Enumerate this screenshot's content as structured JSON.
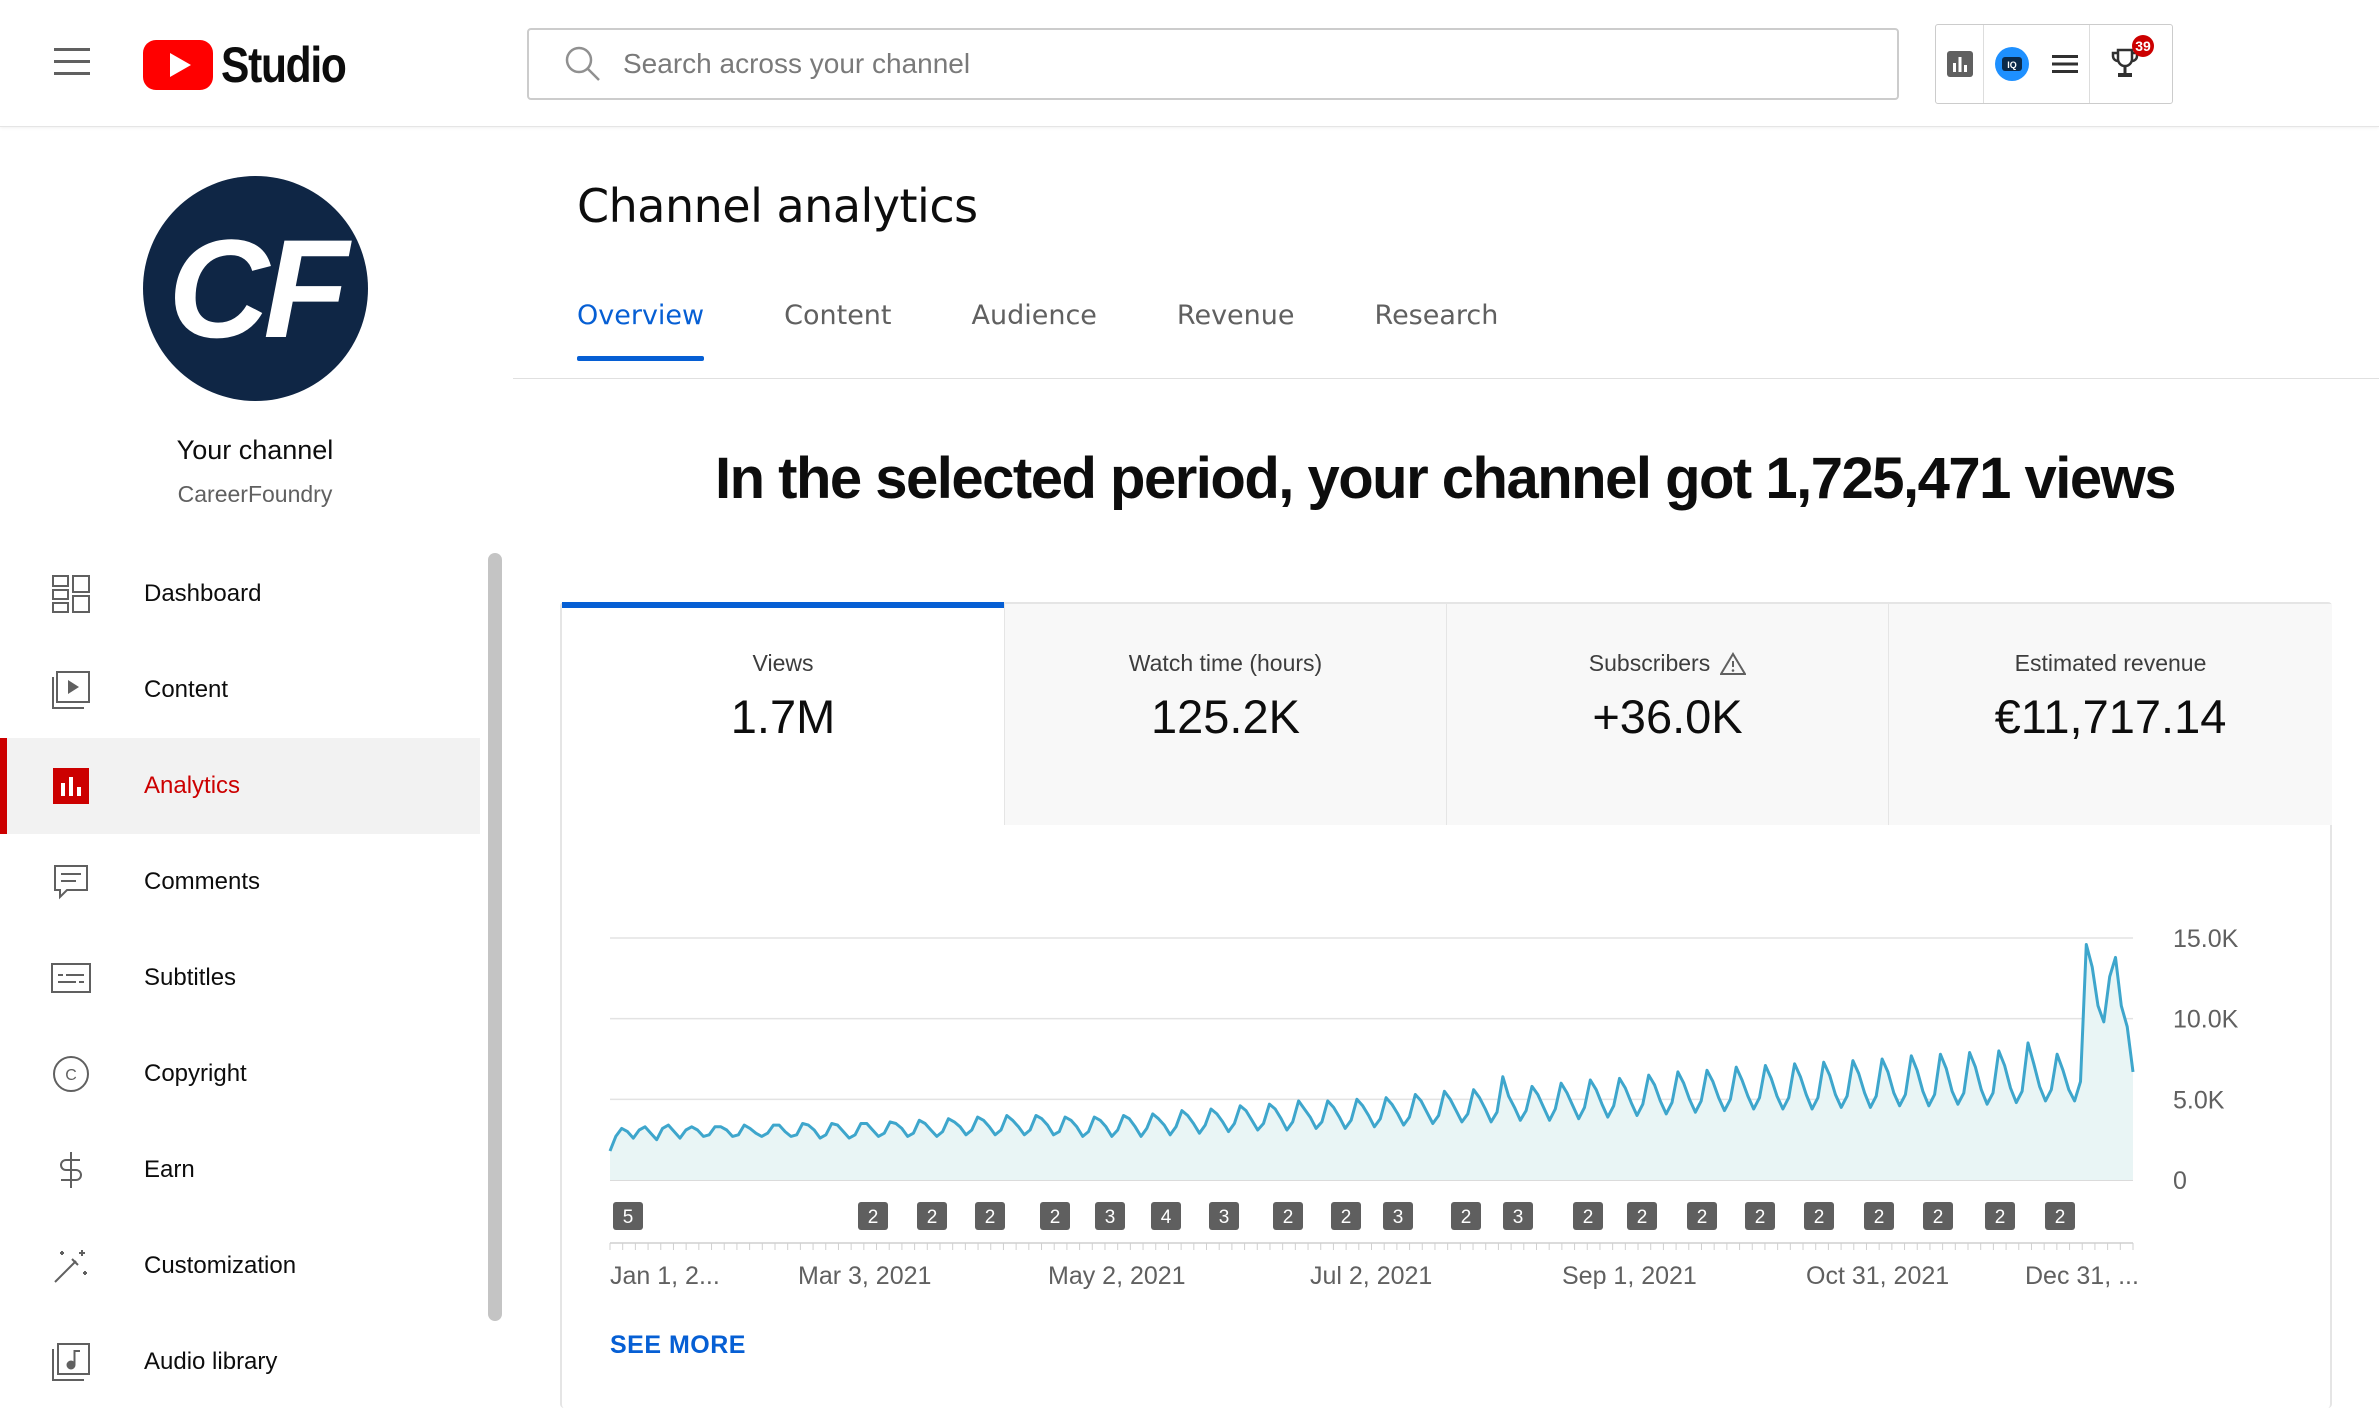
{
  "header": {
    "logo_text": "Studio",
    "search_placeholder": "Search across your channel",
    "notification_badge": "39"
  },
  "sidebar": {
    "avatar_initials": "CF",
    "channel_title": "Your channel",
    "channel_name": "CareerFoundry",
    "items": [
      {
        "label": "Dashboard",
        "icon": "dashboard-icon"
      },
      {
        "label": "Content",
        "icon": "content-icon"
      },
      {
        "label": "Analytics",
        "icon": "analytics-icon",
        "active": true
      },
      {
        "label": "Comments",
        "icon": "comments-icon"
      },
      {
        "label": "Subtitles",
        "icon": "subtitles-icon"
      },
      {
        "label": "Copyright",
        "icon": "copyright-icon"
      },
      {
        "label": "Earn",
        "icon": "earn-icon"
      },
      {
        "label": "Customization",
        "icon": "customization-icon"
      },
      {
        "label": "Audio library",
        "icon": "audio-library-icon"
      }
    ]
  },
  "main": {
    "page_title": "Channel analytics",
    "tabs": [
      "Overview",
      "Content",
      "Audience",
      "Revenue",
      "Research"
    ],
    "active_tab": "Overview",
    "headline": "In the selected period, your channel got 1,725,471 views",
    "metrics": [
      {
        "label": "Views",
        "value": "1.7M",
        "active": true
      },
      {
        "label": "Watch time (hours)",
        "value": "125.2K"
      },
      {
        "label": "Subscribers",
        "value": "+36.0K",
        "warning": true
      },
      {
        "label": "Estimated revenue",
        "value": "€11,717.14"
      }
    ],
    "see_more": "SEE MORE"
  },
  "colors": {
    "accent_blue": "#065fd4",
    "brand_red": "#cc0000",
    "line_color": "#3ea6cc",
    "area_fill": "#e9f5f5"
  },
  "chart_data": {
    "type": "area",
    "x_start": "Jan 1, 2021",
    "x_end": "Jan 15, 2022",
    "ylim": [
      0,
      15000
    ],
    "y_ticks": [
      "15.0K",
      "10.0K",
      "5.0K",
      "0"
    ],
    "x_tick_labels": [
      "Jan 1, 2...",
      "Mar 3, 2021",
      "May 2, 2021",
      "Jul 2, 2021",
      "Sep 1, 2021",
      "Oct 31, 2021",
      "Dec 31, ..."
    ],
    "annotation_markers": [
      "5",
      "2",
      "2",
      "2",
      "2",
      "3",
      "4",
      "3",
      "2",
      "2",
      "3",
      "2",
      "3",
      "2",
      "2",
      "2",
      "2",
      "2",
      "2",
      "2",
      "2",
      "2"
    ],
    "series": [
      {
        "values": [
          1800,
          2700,
          3200,
          3000,
          2600,
          3100,
          3300,
          2900,
          2500,
          3200,
          3400,
          3000,
          2600,
          3100,
          3300,
          3100,
          2700,
          2800,
          3300,
          3300,
          3100,
          2700,
          2800,
          3400,
          3200,
          2900,
          2700,
          2900,
          3400,
          3400,
          3000,
          2700,
          2800,
          3500,
          3400,
          3100,
          2600,
          2800,
          3500,
          3400,
          3000,
          2600,
          2800,
          3500,
          3500,
          3100,
          2700,
          2900,
          3600,
          3500,
          3200,
          2700,
          2900,
          3700,
          3500,
          3100,
          2700,
          3000,
          3800,
          3600,
          3300,
          2800,
          3100,
          3900,
          3700,
          3300,
          2800,
          3100,
          4000,
          3700,
          3300,
          2800,
          3100,
          4000,
          3800,
          3400,
          2800,
          3000,
          3900,
          3700,
          3300,
          2700,
          3000,
          3900,
          3700,
          3300,
          2700,
          3100,
          4000,
          3800,
          3300,
          2700,
          3200,
          4100,
          3800,
          3400,
          2800,
          3300,
          4300,
          4000,
          3500,
          2900,
          3400,
          4400,
          4100,
          3600,
          3000,
          3500,
          4600,
          4300,
          3700,
          3100,
          3500,
          4700,
          4400,
          3800,
          3100,
          3600,
          4900,
          4400,
          3900,
          3200,
          3600,
          4900,
          4500,
          3900,
          3200,
          3700,
          5000,
          4600,
          4000,
          3300,
          3800,
          5100,
          4700,
          4100,
          3400,
          3900,
          5300,
          4900,
          4200,
          3500,
          4000,
          5500,
          5000,
          4300,
          3600,
          4100,
          5600,
          5100,
          4400,
          3600,
          4200,
          6400,
          5200,
          4500,
          3700,
          4300,
          5800,
          5300,
          4500,
          3700,
          4400,
          6000,
          5400,
          4600,
          3800,
          4500,
          6200,
          5600,
          4700,
          3900,
          4600,
          6300,
          5700,
          4800,
          4000,
          4700,
          6500,
          5900,
          4900,
          4100,
          4800,
          6700,
          6000,
          5000,
          4200,
          4900,
          6800,
          6100,
          5100,
          4300,
          5000,
          7000,
          6200,
          5200,
          4400,
          5100,
          7100,
          6300,
          5200,
          4400,
          5100,
          7200,
          6400,
          5300,
          4400,
          5100,
          7300,
          6500,
          5300,
          4500,
          5200,
          7400,
          6600,
          5400,
          4500,
          5200,
          7500,
          6700,
          5400,
          4600,
          5300,
          7700,
          6800,
          5500,
          4600,
          5300,
          7800,
          6900,
          5500,
          4700,
          5400,
          7900,
          7000,
          5600,
          4700,
          5400,
          8000,
          7100,
          5700,
          4800,
          5500,
          8500,
          7200,
          5800,
          4900,
          5600,
          7800,
          6800,
          5600,
          4900,
          6100,
          14600,
          13200,
          10800,
          9800,
          12600,
          13800,
          10800,
          9500,
          6700
        ]
      }
    ]
  }
}
